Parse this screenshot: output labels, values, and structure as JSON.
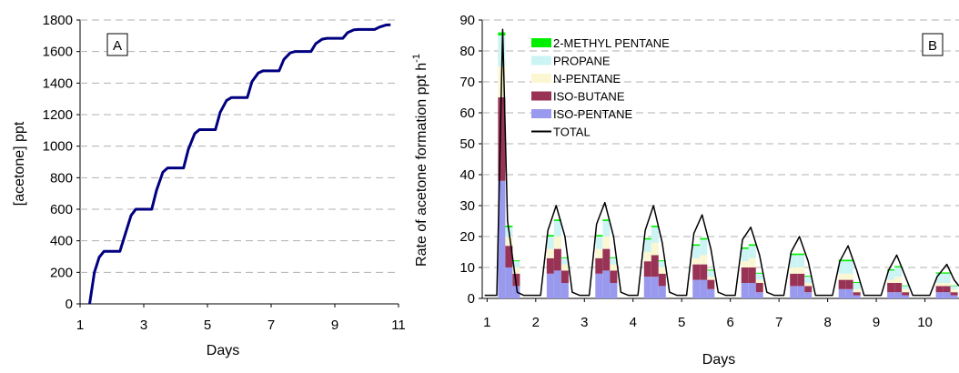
{
  "chart_data": [
    {
      "type": "line",
      "panel_label": "A",
      "xlabel": "Days",
      "ylabel": "[acetone] ppt",
      "xlim": [
        1,
        11
      ],
      "ylim": [
        0,
        1800
      ],
      "xticks": [
        1,
        3,
        5,
        7,
        9,
        11
      ],
      "yticks": [
        0,
        200,
        400,
        600,
        800,
        1000,
        1200,
        1400,
        1600,
        1800
      ],
      "grid": "horizontal dashed",
      "color": "#000080",
      "x": [
        1.3,
        1.45,
        1.6,
        1.75,
        2.0,
        2.25,
        2.4,
        2.6,
        2.75,
        3.0,
        3.25,
        3.4,
        3.6,
        3.75,
        4.0,
        4.25,
        4.4,
        4.6,
        4.75,
        5.0,
        5.25,
        5.4,
        5.6,
        5.75,
        6.0,
        6.25,
        6.4,
        6.6,
        6.75,
        7.0,
        7.25,
        7.4,
        7.6,
        7.75,
        8.0,
        8.25,
        8.4,
        8.6,
        8.75,
        9.0,
        9.25,
        9.4,
        9.6,
        9.75,
        10.0,
        10.25,
        10.4,
        10.6,
        10.75
      ],
      "y": [
        0,
        200,
        295,
        333,
        333,
        333,
        430,
        560,
        600,
        600,
        600,
        720,
        835,
        862,
        862,
        862,
        980,
        1080,
        1105,
        1105,
        1105,
        1215,
        1290,
        1308,
        1308,
        1308,
        1410,
        1465,
        1478,
        1478,
        1478,
        1550,
        1592,
        1600,
        1600,
        1600,
        1650,
        1678,
        1684,
        1684,
        1684,
        1720,
        1738,
        1740,
        1740,
        1740,
        1755,
        1768,
        1770
      ]
    },
    {
      "type": "bar",
      "stacked": true,
      "panel_label": "B",
      "xlabel": "Days",
      "ylabel": "Rate of acetone formation ppt h",
      "ylabel_superscript": "-1",
      "xlim": [
        0.9,
        10.7
      ],
      "ylim": [
        0,
        90
      ],
      "xticks": [
        1,
        2,
        3,
        4,
        5,
        6,
        7,
        8,
        9,
        10
      ],
      "yticks": [
        0,
        10,
        20,
        30,
        40,
        50,
        60,
        70,
        80,
        90
      ],
      "grid": "horizontal dashed",
      "legend_position": "top-left",
      "legend": [
        {
          "name": "2-METHYL PENTANE",
          "color": "#00ee00",
          "kind": "bar"
        },
        {
          "name": "PROPANE",
          "color": "#ccf4f4",
          "kind": "bar"
        },
        {
          "name": "N-PENTANE",
          "color": "#fbf7d2",
          "kind": "bar"
        },
        {
          "name": "ISO-BUTANE",
          "color": "#993355",
          "kind": "bar"
        },
        {
          "name": "ISO-PENTANE",
          "color": "#9999ee",
          "kind": "bar"
        },
        {
          "name": "TOTAL",
          "color": "#000000",
          "kind": "line"
        }
      ],
      "series": [
        {
          "name": "ISO-PENTANE",
          "values": [
            38,
            10,
            4,
            8,
            9,
            5,
            8,
            9,
            5,
            7,
            7,
            4,
            6,
            6,
            3,
            5,
            5,
            2,
            4,
            4,
            2,
            3,
            3,
            1,
            2,
            2,
            1,
            2,
            2,
            1
          ]
        },
        {
          "name": "ISO-BUTANE",
          "values": [
            27,
            7,
            4,
            5,
            7,
            4,
            5,
            7,
            4,
            5,
            7,
            4,
            5,
            5,
            3,
            5,
            5,
            3,
            4,
            4,
            2,
            3,
            3,
            1,
            3,
            3,
            1,
            2,
            2,
            1
          ]
        },
        {
          "name": "N-PENTANE",
          "values": [
            10,
            3,
            2,
            3,
            4,
            2,
            3,
            4,
            2,
            3,
            4,
            2,
            2,
            3,
            1,
            2,
            3,
            1,
            2,
            2,
            1,
            2,
            2,
            1,
            1,
            2,
            1,
            1,
            1,
            1
          ]
        },
        {
          "name": "PROPANE",
          "values": [
            10,
            3,
            2,
            4,
            5,
            2,
            4,
            5,
            2,
            4,
            5,
            2,
            4,
            5,
            2,
            4,
            4,
            2,
            4,
            4,
            2,
            4,
            4,
            2,
            3,
            3,
            1,
            3,
            3,
            1
          ]
        },
        {
          "name": "2-METHYL PENTANE",
          "values": [
            1,
            0.5,
            0.3,
            0.5,
            0.5,
            0.3,
            0.5,
            0.5,
            0.3,
            0.5,
            0.5,
            0.3,
            0.5,
            0.5,
            0.3,
            0.5,
            0.5,
            0.3,
            0.5,
            0.5,
            0.3,
            0.5,
            0.5,
            0.3,
            0.4,
            0.4,
            0.2,
            0.4,
            0.4,
            0.2
          ]
        }
      ],
      "bar_x": [
        1.3,
        1.45,
        1.6,
        2.3,
        2.45,
        2.6,
        3.3,
        3.45,
        3.6,
        4.3,
        4.45,
        4.6,
        5.3,
        5.45,
        5.6,
        6.3,
        6.45,
        6.6,
        7.3,
        7.45,
        7.6,
        8.3,
        8.45,
        8.6,
        9.3,
        9.45,
        9.6,
        10.3,
        10.45,
        10.6
      ],
      "total_line": {
        "x": [
          0.95,
          1.1,
          1.2,
          1.32,
          1.42,
          1.5,
          1.62,
          1.75,
          1.9,
          2.0,
          2.1,
          2.25,
          2.42,
          2.6,
          2.75,
          2.9,
          3.0,
          3.1,
          3.25,
          3.42,
          3.6,
          3.75,
          3.9,
          4.0,
          4.1,
          4.25,
          4.42,
          4.6,
          4.75,
          4.9,
          5.0,
          5.1,
          5.25,
          5.42,
          5.6,
          5.75,
          5.9,
          6.0,
          6.1,
          6.25,
          6.42,
          6.6,
          6.75,
          6.9,
          7.0,
          7.1,
          7.25,
          7.42,
          7.6,
          7.75,
          7.9,
          8.0,
          8.1,
          8.25,
          8.42,
          8.6,
          8.75,
          8.9,
          9.0,
          9.1,
          9.25,
          9.42,
          9.6,
          9.75,
          9.9,
          10.0,
          10.1,
          10.25,
          10.45,
          10.6,
          10.7
        ],
        "y": [
          1,
          1,
          1,
          87,
          25,
          16,
          2,
          1,
          1,
          1,
          1,
          22,
          30,
          20,
          2,
          1,
          1,
          1,
          24,
          31,
          20,
          2,
          1,
          1,
          1,
          22,
          30,
          18,
          2,
          1,
          1,
          1,
          21,
          27,
          16,
          2,
          1,
          1,
          1,
          19,
          23,
          14,
          2,
          1,
          1,
          1,
          15,
          20,
          12,
          1,
          1,
          1,
          1,
          12,
          17,
          9,
          1,
          1,
          1,
          1,
          9,
          14,
          7,
          1,
          1,
          1,
          1,
          7,
          11,
          6,
          4
        ]
      }
    }
  ]
}
